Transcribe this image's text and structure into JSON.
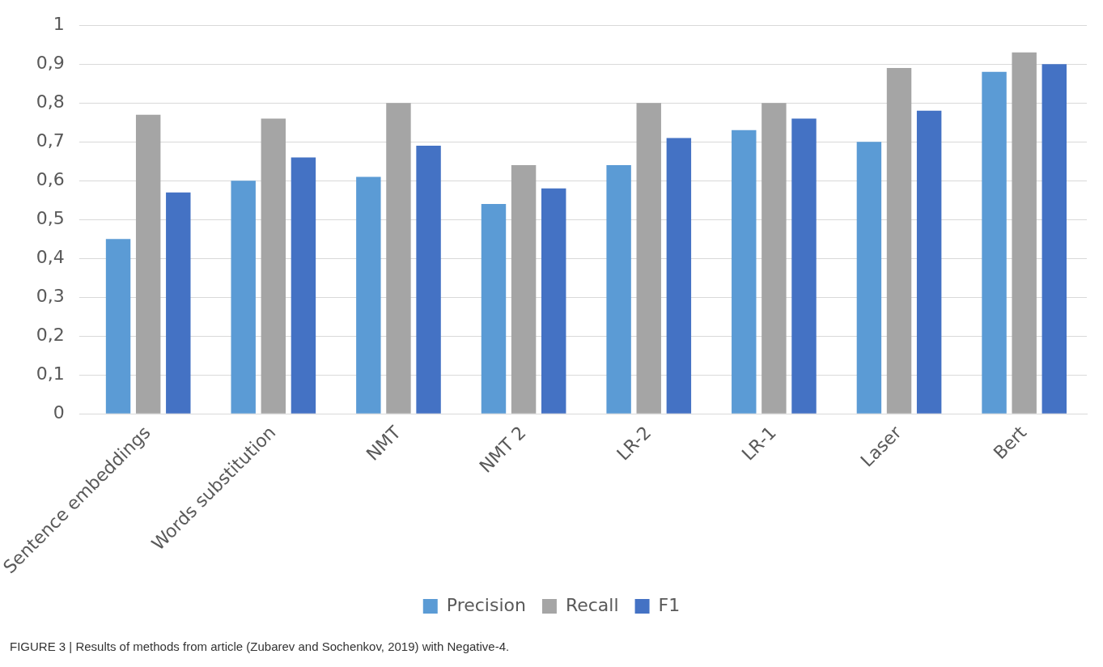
{
  "chart_data": {
    "type": "bar",
    "categories": [
      "Sentence embeddings",
      "Words substitution",
      "NMT",
      "NMT 2",
      "LR-2",
      "LR-1",
      "Laser",
      "Bert"
    ],
    "series": [
      {
        "name": "Precision",
        "color": "#5b9bd5",
        "values": [
          0.45,
          0.6,
          0.61,
          0.54,
          0.64,
          0.73,
          0.7,
          0.88
        ]
      },
      {
        "name": "Recall",
        "color": "#a5a5a5",
        "values": [
          0.77,
          0.76,
          0.8,
          0.64,
          0.8,
          0.8,
          0.89,
          0.93
        ]
      },
      {
        "name": "F1",
        "color": "#4472c4",
        "values": [
          0.57,
          0.66,
          0.69,
          0.58,
          0.71,
          0.76,
          0.78,
          0.9
        ]
      }
    ],
    "ylim": [
      0,
      1
    ],
    "yticks": [
      0,
      {
        "value": 0.1,
        "label": "0,1"
      },
      {
        "value": 0.2,
        "label": "0,2"
      },
      {
        "value": 0.3,
        "label": "0,3"
      },
      {
        "value": 0.4,
        "label": "0,4"
      },
      {
        "value": 0.5,
        "label": "0,5"
      },
      {
        "value": 0.6,
        "label": "0,6"
      },
      {
        "value": 0.7,
        "label": "0,7"
      },
      {
        "value": 0.8,
        "label": "0,8"
      },
      {
        "value": 0.9,
        "label": "0,9"
      },
      1
    ],
    "grid": "y",
    "legend": "bottom",
    "annotations": [
      "FIGURE 3 | Results of methods from article (Zubarev and Sochenkov, 2019) with Negative-4."
    ]
  }
}
